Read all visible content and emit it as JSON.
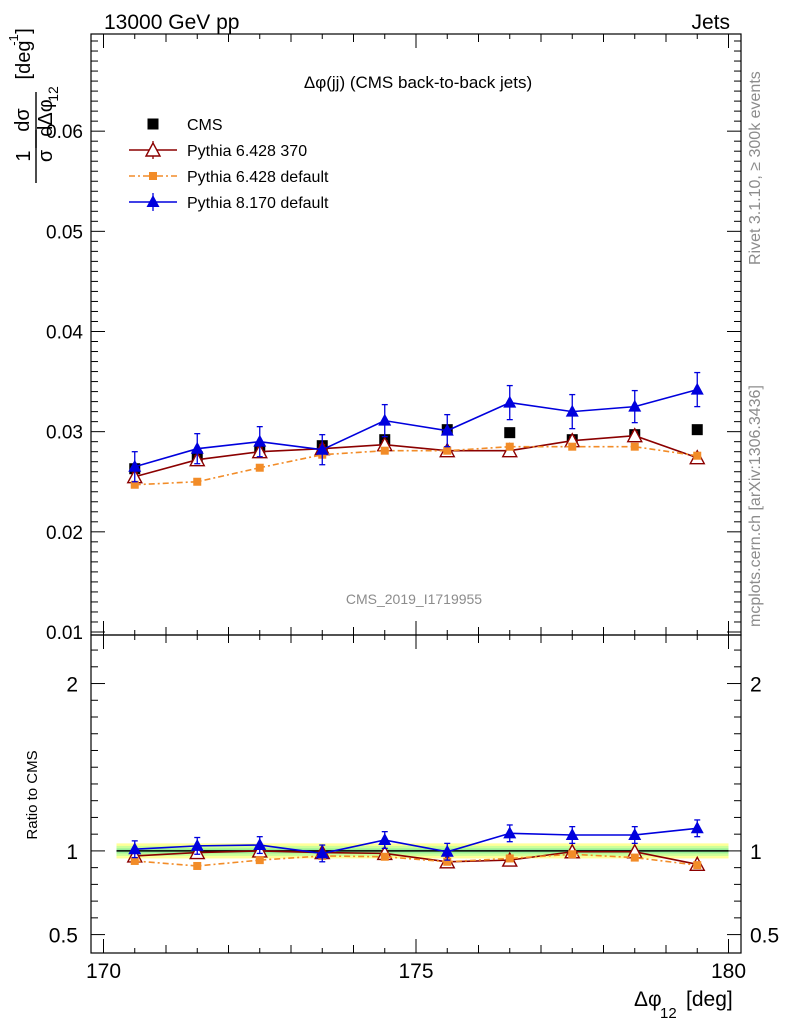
{
  "header": {
    "energy": "13000 GeV pp",
    "process": "Jets"
  },
  "plot_title": "Δφ(jj) (CMS back-to-back jets)",
  "analysis_id": "CMS_2019_I1719955",
  "side_text": {
    "rivet": "Rivet 3.1.10, ≥ 300k events",
    "site": "mcplots.cern.ch [arXiv:1306.3436]"
  },
  "axes": {
    "ylabel_main": "1/σ dσ/dΔφ12 [deg⁻¹]",
    "ylabel_ratio": "Ratio to CMS",
    "xlabel": "Δφ12 [deg]",
    "xlabel_symbol": "Δφ",
    "xlabel_sub": "12",
    "xlabel_unit": "[deg]",
    "ylabel_frac_num": "1",
    "ylabel_frac_den": "σ",
    "ylabel_d_num": "dσ",
    "ylabel_d_den": "dΔφ",
    "ylabel_sub": "12",
    "ylabel_unit": "[deg",
    "ylabel_exp": "-1",
    "ylabel_close": "]"
  },
  "legend": [
    {
      "label": "CMS",
      "marker": "square",
      "color": "#000000"
    },
    {
      "label": "Pythia 6.428 370",
      "marker": "open-triangle",
      "color": "#8b0000"
    },
    {
      "label": "Pythia 6.428 default",
      "marker": "small-square",
      "color": "#f28c28"
    },
    {
      "label": "Pythia 8.170 default",
      "marker": "triangle",
      "color": "#0000dd"
    }
  ],
  "chart_data": [
    {
      "type": "line",
      "panel": "main",
      "title": "Δφ(jj) (CMS back-to-back jets)",
      "xlabel": "Δφ12 [deg]",
      "ylabel": "1/σ dσ/dΔφ12 [deg⁻¹]",
      "xlim": [
        169.8,
        180.2
      ],
      "ylim": [
        0.0097,
        0.0697
      ],
      "x_ticks": [
        170,
        175,
        180
      ],
      "y_ticks": [
        0.01,
        0.02,
        0.03,
        0.04,
        0.05,
        0.06
      ],
      "y_tick_labels": [
        "0.01",
        "0.02",
        "0.03",
        "0.04",
        "0.05",
        "0.06"
      ],
      "x": [
        170.5,
        171.5,
        172.5,
        173.5,
        174.5,
        175.5,
        176.5,
        177.5,
        178.5,
        179.5
      ],
      "series": [
        {
          "name": "CMS",
          "color": "#000000",
          "values": [
            0.0263,
            0.0275,
            0.028,
            0.0286,
            0.0292,
            0.0302,
            0.0299,
            0.0292,
            0.0297,
            0.0302
          ]
        },
        {
          "name": "Pythia 6.428 370",
          "color": "#8b0000",
          "values": [
            0.0255,
            0.0272,
            0.028,
            0.0283,
            0.0287,
            0.0281,
            0.0281,
            0.0291,
            0.0296,
            0.0274
          ],
          "errors": [
            0.0004,
            0.0004,
            0.0004,
            0.0004,
            0.0004,
            0.0004,
            0.0004,
            0.0004,
            0.0004,
            0.0004
          ]
        },
        {
          "name": "Pythia 6.428 default",
          "color": "#f28c28",
          "values": [
            0.0247,
            0.025,
            0.0264,
            0.0277,
            0.0281,
            0.0281,
            0.0285,
            0.0285,
            0.0285,
            0.0276
          ],
          "errors": [
            0.0003,
            0.0003,
            0.0003,
            0.0003,
            0.0003,
            0.0003,
            0.0003,
            0.0003,
            0.0003,
            0.0003
          ]
        },
        {
          "name": "Pythia 8.170 default",
          "color": "#0000dd",
          "values": [
            0.0265,
            0.0283,
            0.029,
            0.0282,
            0.0311,
            0.0301,
            0.0329,
            0.032,
            0.0325,
            0.0342
          ],
          "errors": [
            0.0015,
            0.0015,
            0.0015,
            0.0015,
            0.0016,
            0.0016,
            0.0017,
            0.0017,
            0.0016,
            0.0017
          ]
        }
      ]
    },
    {
      "type": "line",
      "panel": "ratio",
      "ylabel": "Ratio to CMS",
      "xlim": [
        169.8,
        180.2
      ],
      "ylim": [
        0.39,
        2.29
      ],
      "y_ticks": [
        0.5,
        1,
        2
      ],
      "y_tick_labels": [
        "0.5",
        "1",
        "2"
      ],
      "x": [
        170.5,
        171.5,
        172.5,
        173.5,
        174.5,
        175.5,
        176.5,
        177.5,
        178.5,
        179.5
      ],
      "reference_band": {
        "inner": [
          0.985,
          1.015
        ],
        "middle": [
          0.97,
          1.03
        ],
        "outer": [
          0.955,
          1.045
        ]
      },
      "series": [
        {
          "name": "Pythia 6.428 370",
          "color": "#8b0000",
          "values": [
            0.97,
            0.99,
            1.0,
            0.99,
            0.985,
            0.935,
            0.945,
            0.995,
            0.995,
            0.92
          ]
        },
        {
          "name": "Pythia 6.428 default",
          "color": "#f28c28",
          "values": [
            0.94,
            0.91,
            0.945,
            0.97,
            0.965,
            0.935,
            0.955,
            0.98,
            0.96,
            0.915
          ]
        },
        {
          "name": "Pythia 8.170 default",
          "color": "#0000dd",
          "values": [
            1.01,
            1.03,
            1.035,
            0.985,
            1.065,
            0.995,
            1.105,
            1.095,
            1.095,
            1.135
          ],
          "errors": [
            0.05,
            0.05,
            0.05,
            0.05,
            0.05,
            0.05,
            0.05,
            0.05,
            0.05,
            0.05
          ]
        }
      ]
    }
  ]
}
